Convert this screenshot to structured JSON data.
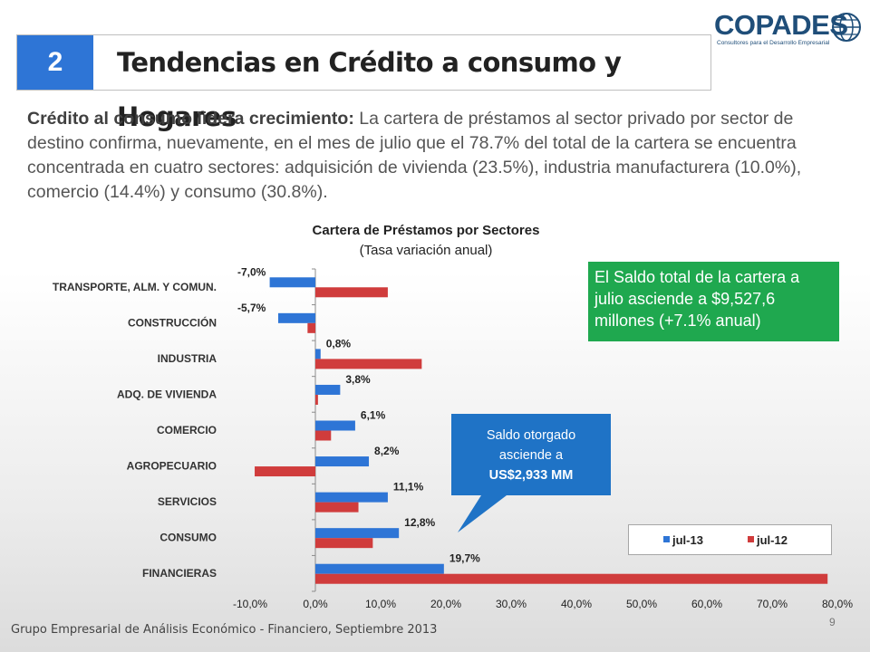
{
  "header": {
    "number": "2",
    "title": "Tendencias en Crédito a consumo y Hogares"
  },
  "logo": {
    "name": "COPADES",
    "tagline": "Consultores para el Desarrollo Empresarial"
  },
  "intro": {
    "lead": "Crédito al consumo lidera crecimiento:",
    "body": " La cartera de préstamos al sector privado por sector de destino confirma, nuevamente, en el mes de julio que el 78.7% del total de la cartera se encuentra concentrada en cuatro sectores: adquisición de vivienda (23.5%), industria manufacturerа (10.0%), comercio (14.4%) y consumo (30.8%)."
  },
  "chart_data": {
    "type": "bar",
    "orientation": "horizontal",
    "title": "Cartera de Préstamos por Sectores",
    "subtitle": "(Tasa variación anual)",
    "categories": [
      "TRANSPORTE, ALM. Y COMUN.",
      "CONSTRUCCIÓN",
      "INDUSTRIA",
      "ADQ. DE VIVIENDA",
      "COMERCIO",
      "AGROPECUARIO",
      "SERVICIOS",
      "CONSUMO",
      "FINANCIERAS"
    ],
    "series": [
      {
        "name": "jul-13",
        "color": "#2e75d6",
        "values": [
          -7.0,
          -5.7,
          0.8,
          3.8,
          6.1,
          8.2,
          11.1,
          12.8,
          19.7
        ],
        "labels": [
          "-7,0%",
          "-5,7%",
          "0,8%",
          "3,8%",
          "6,1%",
          "8,2%",
          "11,1%",
          "12,8%",
          "19,7%"
        ]
      },
      {
        "name": "jul-12",
        "color": "#d03c3c",
        "values": [
          11.1,
          -1.2,
          16.3,
          0.4,
          2.4,
          -9.3,
          6.6,
          8.8,
          78.5
        ]
      }
    ],
    "xlim": [
      -10,
      80
    ],
    "xticks": [
      "-10,0%",
      "0,0%",
      "10,0%",
      "20,0%",
      "30,0%",
      "40,0%",
      "50,0%",
      "60,0%",
      "70,0%",
      "80,0%"
    ],
    "legend": "bottom-right"
  },
  "green_note": "El Saldo total de la cartera a julio asciende a $9,527,6 millones (+7.1% anual)",
  "callout": {
    "line1": "Saldo otorgado",
    "line2": "asciende a",
    "line3": "US$2,933 MM"
  },
  "footer": "Grupo Empresarial de Análisis Económico - Financiero, Septiembre 2013",
  "page_number": "9"
}
